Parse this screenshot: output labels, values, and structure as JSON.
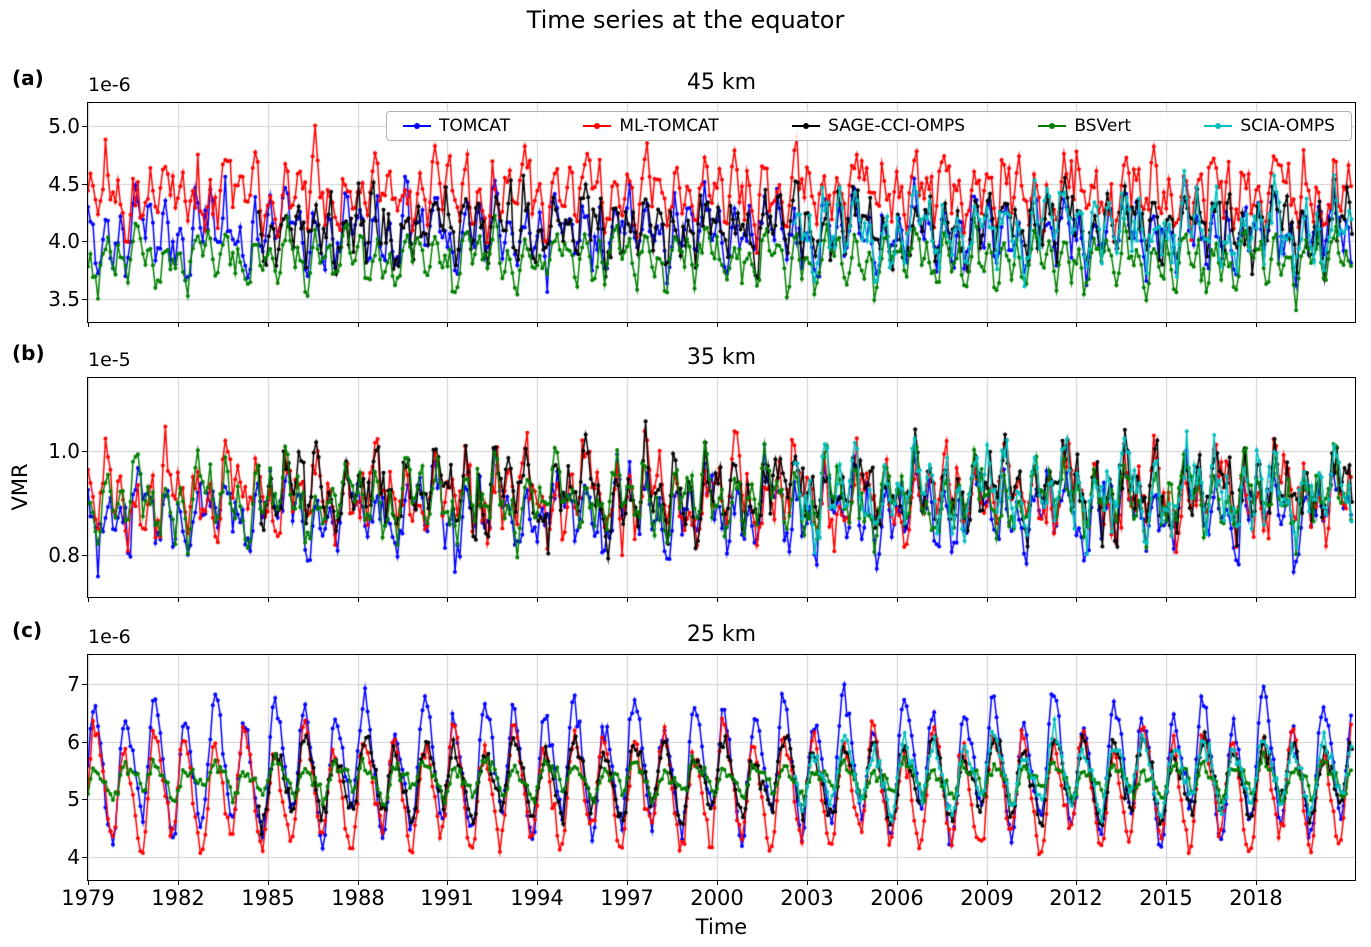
{
  "figure": {
    "title": "Time series at the equator",
    "xlabel": "Time",
    "ylabel": "VMR"
  },
  "style": {
    "background": "#ffffff",
    "grid_color": "#cfcfcf",
    "axis_color": "#000000",
    "legend_border": "#b3b3b3",
    "line_width": 1.5,
    "marker_radius": 2
  },
  "legend": {
    "entries": [
      {
        "label": "TOMCAT",
        "color": "#0000ff"
      },
      {
        "label": "ML-TOMCAT",
        "color": "#ff0000"
      },
      {
        "label": "SAGE-CCI-OMPS",
        "color": "#000000"
      },
      {
        "label": "BSVert",
        "color": "#008000"
      },
      {
        "label": "SCIA-OMPS",
        "color": "#00bfbf"
      }
    ]
  },
  "x_axis": {
    "range": [
      1979,
      2021.3
    ],
    "tick_values": [
      1979,
      1982,
      1985,
      1988,
      1991,
      1994,
      1997,
      2000,
      2003,
      2006,
      2009,
      2012,
      2015,
      2018
    ],
    "tick_labels": [
      "1979",
      "1982",
      "1985",
      "1988",
      "1991",
      "1994",
      "1997",
      "2000",
      "2003",
      "2006",
      "2009",
      "2012",
      "2015",
      "2018"
    ]
  },
  "chart_data_note": "Monthly mean ozone VMR time series at the equator, 1979-2021, read off the plot. Curves are dense noisy monthly series; each series is described by its visible envelope and cycle parameters (values in the panel's unit scale) from which the renderer reconstructs the monthly points deterministically.",
  "chart_data": [
    {
      "type": "line",
      "panel_label": "(a)",
      "title": "45 km",
      "offset_text": "1e-6",
      "unit_scale": "1e-6",
      "ylim": [
        3.3,
        5.2
      ],
      "ytick_values": [
        3.5,
        4.0,
        4.5,
        5.0
      ],
      "ytick_labels": [
        "3.5",
        "4.0",
        "4.5",
        "5.0"
      ],
      "grid": true,
      "series": [
        {
          "name": "TOMCAT",
          "color": "#0000ff",
          "start": 1979,
          "end": 2021.2,
          "base": 4.08,
          "trend": 0,
          "annual_amp": 0.1,
          "annual_phase": 0.72,
          "semi_amp": 0.2,
          "semi_phase": 0.08,
          "qbo_amp": 0.1,
          "qbo_period": 2.33,
          "qbo_phase": 0.4,
          "noise_sd": 0.09,
          "seed": 42,
          "approx_range": [
            3.6,
            4.7
          ]
        },
        {
          "name": "ML-TOMCAT",
          "color": "#ff0000",
          "start": 1979,
          "end": 2021.2,
          "base": 4.42,
          "trend": 0,
          "annual_amp": 0.1,
          "annual_phase": 0.72,
          "semi_amp": 0.18,
          "semi_phase": 0.08,
          "qbo_amp": 0.1,
          "qbo_period": 2.33,
          "qbo_phase": 1.1,
          "noise_sd": 0.11,
          "seed": 137,
          "approx_range": [
            3.95,
            5.05
          ]
        },
        {
          "name": "SAGE-CCI-OMPS",
          "color": "#000000",
          "start": 1984.7,
          "end": 2021.2,
          "base": 4.12,
          "trend": 0,
          "annual_amp": 0.08,
          "annual_phase": 0.72,
          "semi_amp": 0.16,
          "semi_phase": 0.08,
          "qbo_amp": 0.08,
          "qbo_period": 2.33,
          "qbo_phase": 0.9,
          "noise_sd": 0.12,
          "seed": 301,
          "approx_range": [
            3.7,
            4.8
          ]
        },
        {
          "name": "BSVert",
          "color": "#008000",
          "start": 1979,
          "end": 2021.2,
          "base": 3.85,
          "trend": 0,
          "annual_amp": 0.1,
          "annual_phase": 0.72,
          "semi_amp": 0.14,
          "semi_phase": 0.08,
          "qbo_amp": 0.06,
          "qbo_period": 2.33,
          "qbo_phase": 0.2,
          "noise_sd": 0.07,
          "seed": 555,
          "approx_range": [
            3.45,
            4.25
          ]
        },
        {
          "name": "SCIA-OMPS",
          "color": "#00bfbf",
          "start": 2002.6,
          "end": 2021.2,
          "base": 4.1,
          "trend": 0,
          "annual_amp": 0.1,
          "annual_phase": 0.72,
          "semi_amp": 0.16,
          "semi_phase": 0.08,
          "qbo_amp": 0.1,
          "qbo_period": 2.33,
          "qbo_phase": 0.6,
          "noise_sd": 0.11,
          "seed": 777,
          "approx_range": [
            3.55,
            4.8
          ]
        }
      ]
    },
    {
      "type": "line",
      "panel_label": "(b)",
      "title": "35 km",
      "offset_text": "1e-5",
      "unit_scale": "1e-5",
      "ylim": [
        0.72,
        1.14
      ],
      "ytick_values": [
        0.8,
        1.0
      ],
      "ytick_labels": [
        "0.8",
        "1.0"
      ],
      "grid": true,
      "series": [
        {
          "name": "TOMCAT",
          "color": "#0000ff",
          "start": 1979,
          "end": 2021.2,
          "base": 0.885,
          "trend": 0,
          "annual_amp": 0.03,
          "annual_phase": 0.75,
          "semi_amp": 0.035,
          "semi_phase": 0.1,
          "qbo_amp": 0.03,
          "qbo_period": 2.33,
          "qbo_phase": 0.4,
          "noise_sd": 0.022,
          "seed": 888,
          "approx_range": [
            0.74,
            1.02
          ]
        },
        {
          "name": "ML-TOMCAT",
          "color": "#ff0000",
          "start": 1979,
          "end": 2021.2,
          "base": 0.915,
          "trend": 0,
          "annual_amp": 0.03,
          "annual_phase": 0.7,
          "semi_amp": 0.04,
          "semi_phase": 0.1,
          "qbo_amp": 0.03,
          "qbo_period": 2.33,
          "qbo_phase": 1.2,
          "noise_sd": 0.025,
          "seed": 999,
          "approx_range": [
            0.78,
            1.08
          ]
        },
        {
          "name": "SAGE-CCI-OMPS",
          "color": "#000000",
          "start": 1984.7,
          "end": 2021.2,
          "base": 0.925,
          "trend": 0,
          "annual_amp": 0.028,
          "annual_phase": 0.7,
          "semi_amp": 0.04,
          "semi_phase": 0.1,
          "qbo_amp": 0.025,
          "qbo_period": 2.33,
          "qbo_phase": 0.9,
          "noise_sd": 0.025,
          "seed": 1234,
          "approx_range": [
            0.8,
            1.08
          ]
        },
        {
          "name": "BSVert",
          "color": "#008000",
          "start": 1979,
          "end": 2021.2,
          "base": 0.91,
          "trend": 0,
          "annual_amp": 0.03,
          "annual_phase": 0.7,
          "semi_amp": 0.038,
          "semi_phase": 0.1,
          "qbo_amp": 0.025,
          "qbo_period": 2.33,
          "qbo_phase": 0.2,
          "noise_sd": 0.02,
          "seed": 4321,
          "approx_range": [
            0.8,
            1.05
          ]
        },
        {
          "name": "SCIA-OMPS",
          "color": "#00bfbf",
          "start": 2002.6,
          "end": 2021.2,
          "base": 0.92,
          "trend": 0,
          "annual_amp": 0.03,
          "annual_phase": 0.7,
          "semi_amp": 0.04,
          "semi_phase": 0.1,
          "qbo_amp": 0.03,
          "qbo_period": 2.33,
          "qbo_phase": 0.6,
          "noise_sd": 0.027,
          "seed": 2468,
          "approx_range": [
            0.79,
            1.13
          ]
        }
      ]
    },
    {
      "type": "line",
      "panel_label": "(c)",
      "title": "25 km",
      "offset_text": "1e-6",
      "unit_scale": "1e-6",
      "ylim": [
        3.6,
        7.5
      ],
      "ytick_values": [
        4,
        5,
        6,
        7
      ],
      "ytick_labels": [
        "4",
        "5",
        "6",
        "7"
      ],
      "grid": true,
      "series": [
        {
          "name": "TOMCAT",
          "color": "#0000ff",
          "start": 1979,
          "end": 2021.2,
          "base": 5.55,
          "trend": 0,
          "annual_amp": 0.95,
          "annual_phase": 0.28,
          "semi_amp": 0.15,
          "semi_phase": 0.14,
          "qbo_amp": 0.3,
          "qbo_period": 2.33,
          "qbo_phase": 0.5,
          "noise_sd": 0.1,
          "seed": 1357,
          "approx_range": [
            4.2,
            7.2
          ]
        },
        {
          "name": "ML-TOMCAT",
          "color": "#ff0000",
          "start": 1979,
          "end": 2021.2,
          "base": 5.15,
          "trend": 0,
          "annual_amp": 0.85,
          "annual_phase": 0.26,
          "semi_amp": 0.12,
          "semi_phase": 0.13,
          "qbo_amp": 0.22,
          "qbo_period": 2.33,
          "qbo_phase": 1.2,
          "noise_sd": 0.1,
          "seed": 8642,
          "approx_range": [
            3.95,
            6.5
          ]
        },
        {
          "name": "SAGE-CCI-OMPS",
          "color": "#000000",
          "start": 1984.7,
          "end": 2021.2,
          "base": 5.35,
          "trend": 0,
          "annual_amp": 0.55,
          "annual_phase": 0.29,
          "semi_amp": 0.1,
          "semi_phase": 0.14,
          "qbo_amp": 0.18,
          "qbo_period": 2.33,
          "qbo_phase": 0.9,
          "noise_sd": 0.1,
          "seed": 5050,
          "approx_range": [
            4.6,
            6.4
          ]
        },
        {
          "name": "BSVert",
          "color": "#008000",
          "start": 1979,
          "end": 2021.2,
          "base": 5.35,
          "trend": 0,
          "annual_amp": 0.22,
          "annual_phase": 0.33,
          "semi_amp": 0.1,
          "semi_phase": 0.16,
          "qbo_amp": 0.1,
          "qbo_period": 2.33,
          "qbo_phase": 0.2,
          "noise_sd": 0.06,
          "seed": 6060,
          "approx_range": [
            4.9,
            5.85
          ]
        },
        {
          "name": "SCIA-OMPS",
          "color": "#00bfbf",
          "start": 2002.6,
          "end": 2021.2,
          "base": 5.45,
          "trend": 0,
          "annual_amp": 0.5,
          "annual_phase": 0.29,
          "semi_amp": 0.1,
          "semi_phase": 0.14,
          "qbo_amp": 0.18,
          "qbo_period": 2.33,
          "qbo_phase": 0.6,
          "noise_sd": 0.09,
          "seed": 7070,
          "approx_range": [
            4.85,
            6.4
          ]
        }
      ]
    }
  ]
}
